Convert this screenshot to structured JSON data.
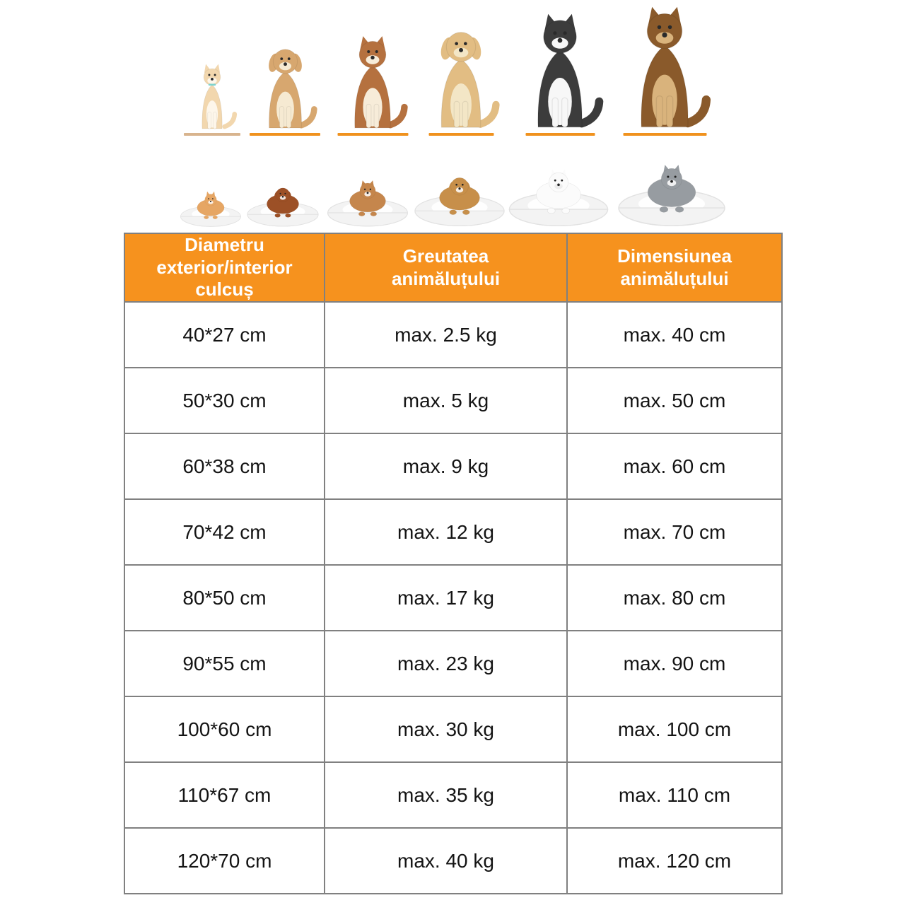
{
  "colors": {
    "header_bg": "#f6921e",
    "header_text": "#ffffff",
    "grid_border": "#808080",
    "cell_text": "#141414",
    "platform_line": "#f0921e",
    "platform_line_first": "#d8b48e",
    "bed_fill": "#f3f3f3",
    "bed_edge": "#e2e2e2",
    "background": "#ffffff"
  },
  "chart_data": {
    "type": "table",
    "title": "Pet bed size chart (Romanian)",
    "columns": [
      "Diametru exterior/interior culcuș",
      "Greutatea animăluțului",
      "Dimensiunea animăluțului"
    ],
    "rows": [
      [
        "40*27 cm",
        "max. 2.5 kg",
        "max. 40 cm"
      ],
      [
        "50*30 cm",
        "max. 5 kg",
        "max. 50 cm"
      ],
      [
        "60*38 cm",
        "max. 9 kg",
        "max. 60 cm"
      ],
      [
        "70*42 cm",
        "max. 12 kg",
        "max. 70 cm"
      ],
      [
        "80*50 cm",
        "max. 17 kg",
        "max. 80 cm"
      ],
      [
        "90*55 cm",
        "max. 23 kg",
        "max. 90 cm"
      ],
      [
        "100*60 cm",
        "max. 30 kg",
        "max. 100 cm"
      ],
      [
        "110*67 cm",
        "max. 35 kg",
        "max. 110 cm"
      ],
      [
        "120*70 cm",
        "max. 40 kg",
        "max. 120 cm"
      ]
    ]
  },
  "table": {
    "header_lines": [
      [
        "Diametru",
        "exterior/interior",
        "culcuș"
      ],
      [
        "Greutatea",
        "animăluțului"
      ],
      [
        "Dimensiunea",
        "animăluțului"
      ]
    ]
  },
  "illustration": {
    "top_row": [
      {
        "icon": "cat-photo-icon",
        "kind": "cat",
        "ears": "pointy",
        "color": "#f2d7ae",
        "accent": "#fdf6ea"
      },
      {
        "icon": "small-puppy-photo-icon",
        "kind": "dog",
        "ears": "floppy",
        "color": "#d7a76f",
        "accent": "#f6ead2"
      },
      {
        "icon": "corgi-puppy-photo-icon",
        "kind": "dog",
        "ears": "pointy",
        "color": "#b5713f",
        "accent": "#f7ecd9"
      },
      {
        "icon": "golden-retriever-photo-icon",
        "kind": "dog",
        "ears": "floppy",
        "color": "#e2bd83",
        "accent": "#f3e6c6"
      },
      {
        "icon": "border-collie-photo-icon",
        "kind": "dog",
        "ears": "pointy",
        "color": "#3c3c3c",
        "accent": "#f7f7f7"
      },
      {
        "icon": "german-shepherd-photo-icon",
        "kind": "dog",
        "ears": "pointy",
        "color": "#8a5a2b",
        "accent": "#d9b37c"
      }
    ],
    "bed_row": [
      {
        "icon": "kitten-on-bed-icon",
        "kind": "cat",
        "ears": "pointy",
        "color": "#e6a664"
      },
      {
        "icon": "poodle-on-bed-icon",
        "kind": "dog",
        "ears": "floppy",
        "color": "#9c5026"
      },
      {
        "icon": "corgi-on-bed-icon",
        "kind": "dog",
        "ears": "pointy",
        "color": "#c5864c"
      },
      {
        "icon": "golden-retriever-on-bed-icon",
        "kind": "dog",
        "ears": "floppy",
        "color": "#c78f4a"
      },
      {
        "icon": "samoyed-on-bed-icon",
        "kind": "dog",
        "ears": "pointy",
        "color": "#fbfbfb"
      },
      {
        "icon": "husky-on-bed-icon",
        "kind": "dog",
        "ears": "pointy",
        "color": "#979ca1"
      }
    ]
  }
}
